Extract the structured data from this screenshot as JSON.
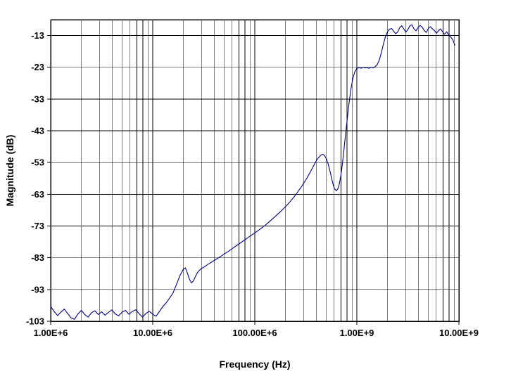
{
  "chart_data": {
    "type": "line",
    "title": "",
    "xlabel": "Frequency (Hz)",
    "ylabel": "Magnitude (dB)",
    "x_scale": "log",
    "xlim": [
      1000000.0,
      10000000000.0
    ],
    "ylim": [
      -103,
      -8
    ],
    "grid": true,
    "legend": "none",
    "line_color": "#000080",
    "grid_color": "#000000",
    "frame_color": "#000000",
    "x_ticks": [
      {
        "v": 1000000.0,
        "label": "1.00E+6"
      },
      {
        "v": 10000000.0,
        "label": "10.00E+6"
      },
      {
        "v": 100000000.0,
        "label": "100.00E+6"
      },
      {
        "v": 1000000000.0,
        "label": "1.00E+9"
      },
      {
        "v": 10000000000.0,
        "label": "10.00E+9"
      }
    ],
    "y_ticks": [
      {
        "v": -13,
        "label": "-13"
      },
      {
        "v": -23,
        "label": "-23"
      },
      {
        "v": -33,
        "label": "-33"
      },
      {
        "v": -43,
        "label": "-43"
      },
      {
        "v": -53,
        "label": "-53"
      },
      {
        "v": -63,
        "label": "-63"
      },
      {
        "v": -73,
        "label": "-73"
      },
      {
        "v": -83,
        "label": "-83"
      },
      {
        "v": -93,
        "label": "-93"
      },
      {
        "v": -103,
        "label": "-103"
      }
    ],
    "series": [
      {
        "name": "magnitude",
        "points": [
          [
            1000000.0,
            -98.3
          ],
          [
            1080000.0,
            -99.9
          ],
          [
            1170000.0,
            -101.2
          ],
          [
            1260000.0,
            -100.1
          ],
          [
            1360000.0,
            -99.2
          ],
          [
            1470000.0,
            -100.6
          ],
          [
            1580000.0,
            -101.9
          ],
          [
            1710000.0,
            -102.4
          ],
          [
            1850000.0,
            -100.7
          ],
          [
            2000000.0,
            -99.6
          ],
          [
            2160000.0,
            -100.9
          ],
          [
            2330000.0,
            -101.7
          ],
          [
            2510000.0,
            -100.3
          ],
          [
            2710000.0,
            -99.7
          ],
          [
            2930000.0,
            -100.9
          ],
          [
            3160000.0,
            -100.0
          ],
          [
            3410000.0,
            -101.1
          ],
          [
            3680000.0,
            -100.2
          ],
          [
            3980000.0,
            -99.4
          ],
          [
            4300000.0,
            -100.7
          ],
          [
            4640000.0,
            -101.3
          ],
          [
            5010000.0,
            -100.1
          ],
          [
            5410000.0,
            -99.6
          ],
          [
            5840000.0,
            -100.8
          ],
          [
            6310000.0,
            -99.9
          ],
          [
            6810000.0,
            -99.4
          ],
          [
            7360000.0,
            -100.6
          ],
          [
            7940000.0,
            -101.7
          ],
          [
            8580000.0,
            -100.5
          ],
          [
            9260000.0,
            -99.9
          ],
          [
            10000000.0,
            -100.8
          ],
          [
            10800000.0,
            -101.4
          ],
          [
            11700000.0,
            -99.8
          ],
          [
            12600000.0,
            -98.3
          ],
          [
            13600000.0,
            -97.1
          ],
          [
            14700000.0,
            -95.6
          ],
          [
            15800000.0,
            -94.1
          ],
          [
            17100000.0,
            -91.4
          ],
          [
            18500000.0,
            -88.6
          ],
          [
            20000000.0,
            -86.6
          ],
          [
            20900000.0,
            -86.2
          ],
          [
            21900000.0,
            -87.9
          ],
          [
            22900000.0,
            -89.8
          ],
          [
            24000000.0,
            -90.9
          ],
          [
            25100000.0,
            -90.2
          ],
          [
            26300000.0,
            -88.8
          ],
          [
            27500000.0,
            -87.6
          ],
          [
            28800000.0,
            -86.9
          ],
          [
            30200000.0,
            -86.3
          ],
          [
            31600000.0,
            -86.0
          ],
          [
            34700000.0,
            -85.1
          ],
          [
            38000000.0,
            -84.3
          ],
          [
            41700000.0,
            -83.5
          ],
          [
            45700000.0,
            -82.7
          ],
          [
            50100000.0,
            -81.8
          ],
          [
            55000000.0,
            -81.0
          ],
          [
            60300000.0,
            -80.1
          ],
          [
            66100000.0,
            -79.2
          ],
          [
            72400000.0,
            -78.3
          ],
          [
            79400000.0,
            -77.4
          ],
          [
            87100000.0,
            -76.5
          ],
          [
            95500000.0,
            -75.6
          ],
          [
            105000000.0,
            -74.7
          ],
          [
            115000000.0,
            -73.8
          ],
          [
            126000000.0,
            -72.8
          ],
          [
            138000000.0,
            -71.7
          ],
          [
            151000000.0,
            -70.6
          ],
          [
            166000000.0,
            -69.4
          ],
          [
            182000000.0,
            -68.2
          ],
          [
            200000000.0,
            -66.9
          ],
          [
            219000000.0,
            -65.5
          ],
          [
            240000000.0,
            -64.0
          ],
          [
            263000000.0,
            -62.3
          ],
          [
            288000000.0,
            -60.5
          ],
          [
            316000000.0,
            -58.5
          ],
          [
            347000000.0,
            -56.2
          ],
          [
            380000000.0,
            -53.8
          ],
          [
            407000000.0,
            -52.0
          ],
          [
            437000000.0,
            -50.9
          ],
          [
            457000000.0,
            -50.4
          ],
          [
            479000000.0,
            -50.7
          ],
          [
            501000000.0,
            -51.7
          ],
          [
            525000000.0,
            -53.6
          ],
          [
            550000000.0,
            -56.2
          ],
          [
            575000000.0,
            -59.0
          ],
          [
            603000000.0,
            -61.2
          ],
          [
            631000000.0,
            -61.9
          ],
          [
            661000000.0,
            -60.9
          ],
          [
            692000000.0,
            -57.8
          ],
          [
            724000000.0,
            -53.0
          ],
          [
            759000000.0,
            -47.0
          ],
          [
            794000000.0,
            -41.0
          ],
          [
            832000000.0,
            -35.2
          ],
          [
            871000000.0,
            -30.2
          ],
          [
            912000000.0,
            -26.6
          ],
          [
            955000000.0,
            -24.4
          ],
          [
            1000000000.0,
            -23.4
          ],
          [
            1050000000.0,
            -23.1
          ],
          [
            1100000000.0,
            -23.3
          ],
          [
            1150000000.0,
            -23.0
          ],
          [
            1200000000.0,
            -23.2
          ],
          [
            1260000000.0,
            -23.1
          ],
          [
            1320000000.0,
            -23.3
          ],
          [
            1380000000.0,
            -23.0
          ],
          [
            1450000000.0,
            -23.2
          ],
          [
            1510000000.0,
            -22.8
          ],
          [
            1580000000.0,
            -22.2
          ],
          [
            1660000000.0,
            -20.7
          ],
          [
            1740000000.0,
            -18.3
          ],
          [
            1820000000.0,
            -15.7
          ],
          [
            1910000000.0,
            -13.3
          ],
          [
            2000000000.0,
            -11.8
          ],
          [
            2090000000.0,
            -11.0
          ],
          [
            2190000000.0,
            -10.8
          ],
          [
            2290000000.0,
            -11.6
          ],
          [
            2400000000.0,
            -12.4
          ],
          [
            2510000000.0,
            -11.9
          ],
          [
            2630000000.0,
            -10.5
          ],
          [
            2750000000.0,
            -9.9
          ],
          [
            2880000000.0,
            -10.9
          ],
          [
            3020000000.0,
            -11.9
          ],
          [
            3160000000.0,
            -11.1
          ],
          [
            3310000000.0,
            -9.9
          ],
          [
            3470000000.0,
            -9.6
          ],
          [
            3630000000.0,
            -10.9
          ],
          [
            3800000000.0,
            -11.5
          ],
          [
            3980000000.0,
            -10.5
          ],
          [
            4170000000.0,
            -9.8
          ],
          [
            4370000000.0,
            -10.4
          ],
          [
            4570000000.0,
            -11.4
          ],
          [
            4790000000.0,
            -12.0
          ],
          [
            5010000000.0,
            -10.8
          ],
          [
            5250000000.0,
            -10.2
          ],
          [
            5500000000.0,
            -10.9
          ],
          [
            5750000000.0,
            -11.4
          ],
          [
            6030000000.0,
            -12.3
          ],
          [
            6310000000.0,
            -11.5
          ],
          [
            6610000000.0,
            -10.9
          ],
          [
            6920000000.0,
            -11.8
          ],
          [
            7240000000.0,
            -12.6
          ],
          [
            7590000000.0,
            -11.8
          ],
          [
            7940000000.0,
            -12.8
          ],
          [
            8320000000.0,
            -13.5
          ],
          [
            8710000000.0,
            -14.3
          ],
          [
            9120000000.0,
            -16.0
          ]
        ]
      }
    ]
  }
}
